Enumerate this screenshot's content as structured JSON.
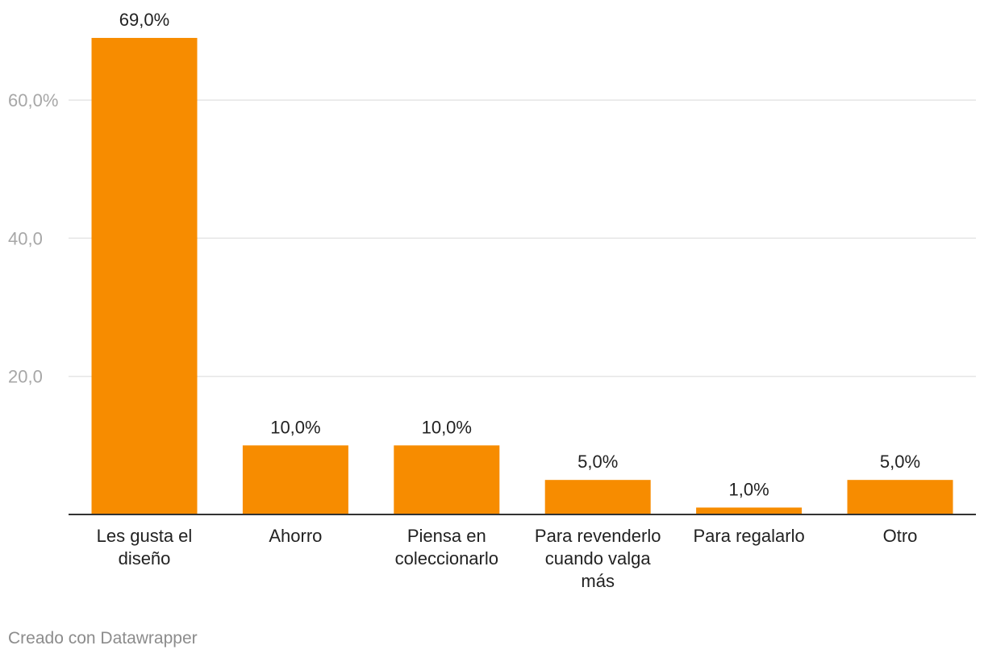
{
  "chart_data": {
    "type": "bar",
    "categories": [
      "Les gusta el diseño",
      "Ahorro",
      "Piensa en coleccionarlo",
      "Para revenderlo cuando valga más",
      "Para regalarlo",
      "Otro"
    ],
    "category_lines": [
      [
        "Les gusta el",
        "diseño"
      ],
      [
        "Ahorro"
      ],
      [
        "Piensa en",
        "coleccionarlo"
      ],
      [
        "Para revenderlo",
        "cuando valga",
        "más"
      ],
      [
        "Para regalarlo"
      ],
      [
        "Otro"
      ]
    ],
    "values": [
      69.0,
      10.0,
      10.0,
      5.0,
      1.0,
      5.0
    ],
    "value_labels": [
      "69,0%",
      "10,0%",
      "10,0%",
      "5,0%",
      "1,0%",
      "5,0%"
    ],
    "yticks": [
      20,
      40,
      60
    ],
    "ytick_labels": [
      "20,0",
      "40,0",
      "60,0%"
    ],
    "ylim": [
      0,
      69
    ],
    "grid": true,
    "bar_color": "#f78c00",
    "grid_color": "#e5e5e5",
    "axis_color": "#333333"
  },
  "footer": {
    "credit": "Creado con Datawrapper"
  }
}
